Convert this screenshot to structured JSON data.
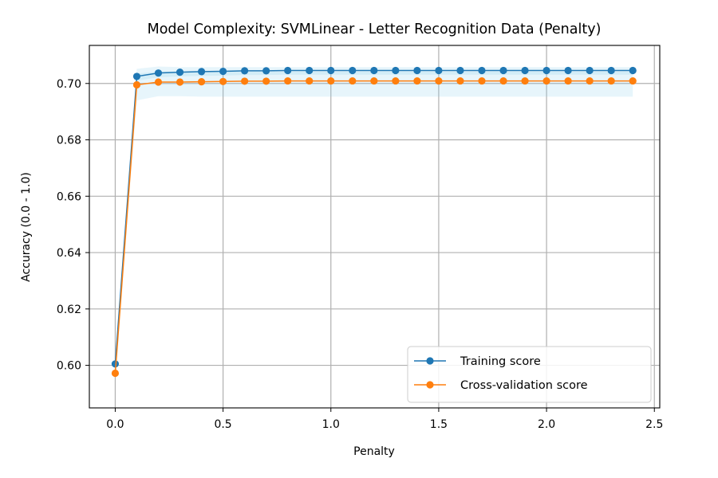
{
  "chart_data": {
    "type": "line",
    "title": "Model Complexity: SVMLinear - Letter Recognition Data (Penalty)",
    "xlabel": "Penalty",
    "ylabel": "Accuracy (0.0 - 1.0)",
    "xlim": [
      -0.12,
      2.525
    ],
    "ylim": [
      0.5849,
      0.7135
    ],
    "xticks": [
      0.0,
      0.5,
      1.0,
      1.5,
      2.0,
      2.5
    ],
    "xtick_labels": [
      "0.0",
      "0.5",
      "1.0",
      "1.5",
      "2.0",
      "2.5"
    ],
    "yticks": [
      0.6,
      0.62,
      0.64,
      0.66,
      0.68,
      0.7
    ],
    "ytick_labels": [
      "0.60",
      "0.62",
      "0.64",
      "0.66",
      "0.68",
      "0.70"
    ],
    "grid": true,
    "legend_position": "lower-right",
    "x": [
      0.0,
      0.1,
      0.2,
      0.3,
      0.4,
      0.5,
      0.6,
      0.7,
      0.8,
      0.9,
      1.0,
      1.1,
      1.2,
      1.3,
      1.4,
      1.5,
      1.6,
      1.7,
      1.8,
      1.9,
      2.0,
      2.1,
      2.2,
      2.3,
      2.4
    ],
    "series": [
      {
        "name": "Training score",
        "color": "#1f77b4",
        "band_color": "#87ceeb",
        "values": [
          0.6005,
          0.7025,
          0.7037,
          0.704,
          0.7042,
          0.7043,
          0.7045,
          0.7045,
          0.7046,
          0.7046,
          0.7046,
          0.7046,
          0.7046,
          0.7046,
          0.7046,
          0.7046,
          0.7046,
          0.7046,
          0.7046,
          0.7046,
          0.7046,
          0.7046,
          0.7046,
          0.7046,
          0.7046
        ],
        "band_low": [
          0.6005,
          0.701,
          0.7022,
          0.7025,
          0.7027,
          0.7028,
          0.703,
          0.703,
          0.7031,
          0.7031,
          0.7031,
          0.7031,
          0.7031,
          0.7031,
          0.7031,
          0.7031,
          0.7031,
          0.7031,
          0.7031,
          0.7031,
          0.7031,
          0.7031,
          0.7031,
          0.7031,
          0.7031
        ],
        "band_high": [
          0.6005,
          0.7052,
          0.706,
          0.7058,
          0.7058,
          0.7058,
          0.7058,
          0.7058,
          0.7058,
          0.7058,
          0.7058,
          0.7058,
          0.7058,
          0.7058,
          0.7058,
          0.7058,
          0.7058,
          0.7058,
          0.7058,
          0.7058,
          0.7058,
          0.7058,
          0.7058,
          0.7058,
          0.7058
        ]
      },
      {
        "name": "Cross-validation score",
        "color": "#ff7f0e",
        "band_color": "#87ceeb",
        "values": [
          0.5972,
          0.6995,
          0.7005,
          0.7005,
          0.7006,
          0.7007,
          0.7008,
          0.7008,
          0.7009,
          0.7009,
          0.7009,
          0.7009,
          0.7009,
          0.7009,
          0.7009,
          0.7009,
          0.7009,
          0.7009,
          0.7009,
          0.7009,
          0.7009,
          0.7009,
          0.7009,
          0.7009,
          0.7009
        ],
        "band_low": [
          0.5972,
          0.694,
          0.6955,
          0.6955,
          0.6953,
          0.6953,
          0.6953,
          0.6953,
          0.6953,
          0.6953,
          0.6953,
          0.6953,
          0.6953,
          0.6953,
          0.6953,
          0.6953,
          0.6953,
          0.6953,
          0.6953,
          0.6953,
          0.6953,
          0.6953,
          0.6953,
          0.6953,
          0.6953
        ],
        "band_high": [
          0.5972,
          0.7035,
          0.7042,
          0.7042,
          0.7042,
          0.7042,
          0.7042,
          0.7042,
          0.7042,
          0.7042,
          0.7042,
          0.7042,
          0.7042,
          0.7042,
          0.7042,
          0.7042,
          0.7042,
          0.7042,
          0.7042,
          0.7042,
          0.7042,
          0.7042,
          0.7042,
          0.7042,
          0.7042
        ]
      }
    ]
  }
}
